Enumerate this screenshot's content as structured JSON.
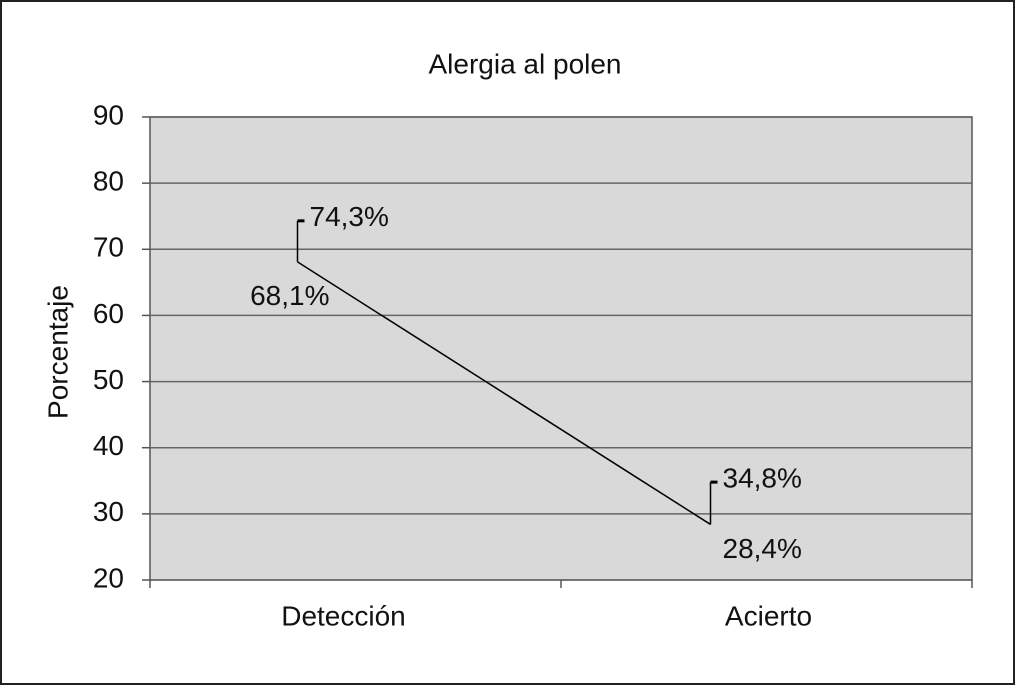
{
  "chart_data": {
    "type": "line",
    "title": "Alergia al polen",
    "y_label": "Porcentaje",
    "categories": [
      "Detección",
      "Acierto"
    ],
    "series": [
      {
        "color": "#000000",
        "values": [
          68.1,
          28.4
        ],
        "value_labels": [
          "68,1%",
          "28,4%"
        ]
      },
      {
        "color": "#000000",
        "values": [
          74.3,
          34.8
        ],
        "value_labels": [
          "74,3%",
          "34,8%"
        ]
      }
    ],
    "ylim": [
      20,
      90
    ],
    "yticks": [
      20,
      30,
      40,
      50,
      60,
      70,
      80,
      90
    ],
    "grid": true
  }
}
